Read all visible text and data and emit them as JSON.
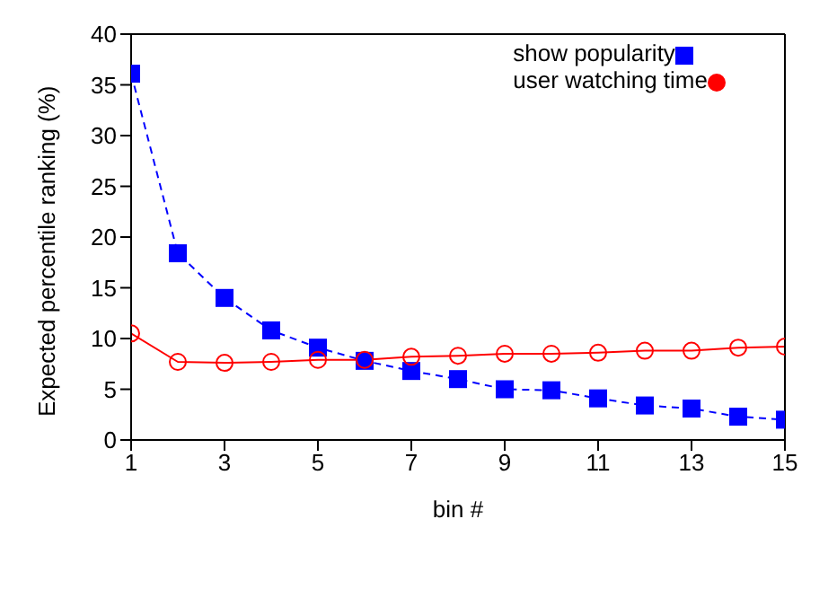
{
  "chart_data": {
    "type": "line",
    "xlabel": "bin #",
    "ylabel": "Expected percentile ranking (%)",
    "x": [
      1,
      2,
      3,
      4,
      5,
      6,
      7,
      8,
      9,
      10,
      11,
      12,
      13,
      14,
      15
    ],
    "series": [
      {
        "name": "show popularity",
        "color": "#0000ff",
        "marker": "square",
        "line_style": "dashed",
        "values": [
          36.1,
          18.4,
          14,
          10.8,
          9.1,
          7.8,
          6.8,
          6,
          5,
          4.9,
          4.1,
          3.4,
          3.1,
          2.3,
          2
        ]
      },
      {
        "name": "user watching time",
        "color": "#ff0000",
        "marker": "circle",
        "line_style": "solid",
        "values": [
          10.5,
          7.7,
          7.6,
          7.7,
          7.9,
          7.9,
          8.2,
          8.3,
          8.5,
          8.5,
          8.6,
          8.8,
          8.8,
          9.1,
          9.2
        ]
      }
    ],
    "xlim": [
      1,
      15
    ],
    "xticks": [
      1,
      3,
      5,
      7,
      9,
      11,
      13,
      15
    ],
    "ylim": [
      0,
      40
    ],
    "yticks": [
      0,
      5,
      10,
      15,
      20,
      25,
      30,
      35,
      40
    ],
    "grid": false,
    "legend": "top right"
  }
}
